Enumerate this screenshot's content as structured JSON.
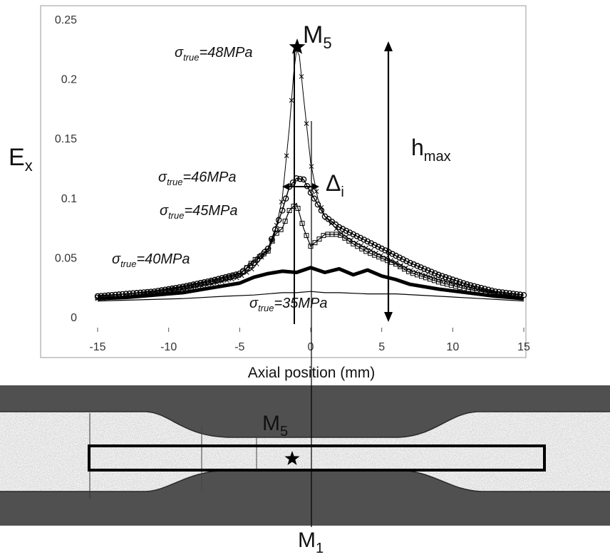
{
  "chart_data": {
    "type": "line",
    "xlabel": "Axial position (mm)",
    "ylabel_main": "E",
    "ylabel_sub": "x",
    "xlim": [
      -15,
      15
    ],
    "ylim": [
      0,
      0.25
    ],
    "x_ticks": [
      -15,
      -10,
      -5,
      0,
      5,
      10,
      15
    ],
    "x_tick_labels": [
      "-15",
      "-10",
      "-5",
      "0",
      "5",
      "10",
      "15"
    ],
    "y_ticks": [
      0,
      0.05,
      0.1,
      0.15,
      0.2,
      0.25
    ],
    "y_tick_labels": [
      "0",
      "0.05",
      "0.1",
      "0.15",
      "0.2",
      "0.25"
    ],
    "grid": false,
    "series": [
      {
        "name": "σtrue=35MPa",
        "style": "thin-line",
        "x": [
          -15,
          -12,
          -9,
          -6,
          -4,
          -2,
          -1,
          0,
          1,
          2,
          4,
          6,
          9,
          12,
          15
        ],
        "y": [
          0.014,
          0.015,
          0.016,
          0.018,
          0.019,
          0.021,
          0.021,
          0.022,
          0.021,
          0.021,
          0.02,
          0.02,
          0.018,
          0.016,
          0.014
        ]
      },
      {
        "name": "σtrue=40MPa",
        "style": "thick-line",
        "x": [
          -15,
          -13,
          -11,
          -9,
          -7,
          -5,
          -4,
          -3,
          -2,
          -1,
          0,
          1,
          2,
          3,
          4,
          5,
          6,
          7,
          9,
          11,
          13,
          15
        ],
        "y": [
          0.016,
          0.017,
          0.019,
          0.021,
          0.025,
          0.029,
          0.034,
          0.037,
          0.039,
          0.038,
          0.042,
          0.038,
          0.041,
          0.036,
          0.04,
          0.035,
          0.032,
          0.028,
          0.024,
          0.021,
          0.018,
          0.016
        ]
      },
      {
        "name": "σtrue=45MPa",
        "style": "square-markers",
        "x": [
          -15,
          -13,
          -11,
          -9,
          -7,
          -5,
          -4,
          -3,
          -2.5,
          -2,
          -1.5,
          -1,
          -0.5,
          0,
          0.5,
          1,
          2,
          3,
          4,
          5,
          6,
          7,
          9,
          11,
          13,
          15
        ],
        "y": [
          0.017,
          0.018,
          0.021,
          0.025,
          0.03,
          0.036,
          0.048,
          0.056,
          0.07,
          0.075,
          0.09,
          0.096,
          0.075,
          0.06,
          0.065,
          0.07,
          0.07,
          0.062,
          0.055,
          0.05,
          0.045,
          0.038,
          0.03,
          0.024,
          0.02,
          0.017
        ]
      },
      {
        "name": "σtrue=46MPa",
        "style": "circle-markers",
        "x": [
          -15,
          -13,
          -11,
          -9,
          -7,
          -5,
          -4,
          -3,
          -2,
          -1.5,
          -1,
          -0.5,
          0,
          1,
          2,
          3,
          4,
          5,
          6,
          7,
          9,
          11,
          13,
          15
        ],
        "y": [
          0.018,
          0.02,
          0.022,
          0.026,
          0.031,
          0.037,
          0.046,
          0.058,
          0.09,
          0.11,
          0.117,
          0.116,
          0.105,
          0.085,
          0.076,
          0.07,
          0.064,
          0.058,
          0.052,
          0.046,
          0.036,
          0.028,
          0.022,
          0.019
        ]
      },
      {
        "name": "σtrue=48MPa",
        "style": "cross-markers",
        "x": [
          -15,
          -13,
          -11,
          -9,
          -7,
          -5,
          -4,
          -3,
          -2.5,
          -2,
          -1.5,
          -1.2,
          -1,
          -0.8,
          -0.5,
          0,
          0.5,
          1,
          2,
          3,
          4,
          5,
          6,
          7,
          9,
          11,
          13,
          15
        ],
        "y": [
          0.016,
          0.018,
          0.02,
          0.024,
          0.028,
          0.034,
          0.042,
          0.058,
          0.072,
          0.1,
          0.16,
          0.205,
          0.225,
          0.22,
          0.185,
          0.13,
          0.1,
          0.085,
          0.072,
          0.064,
          0.058,
          0.052,
          0.046,
          0.04,
          0.032,
          0.026,
          0.021,
          0.017
        ]
      }
    ],
    "annotations": {
      "m5_top": {
        "main": "M",
        "sub": "5"
      },
      "m5_bottom": {
        "main": "M",
        "sub": "5"
      },
      "m1": {
        "main": "M",
        "sub": "1"
      },
      "hmax": {
        "main": "h",
        "sub": "max"
      },
      "delta": {
        "main": "Δ",
        "sub": "i"
      },
      "sigma_labels": [
        {
          "prefix": "σ",
          "sub": "true",
          "value": "=48MPa"
        },
        {
          "prefix": "σ",
          "sub": "true",
          "value": "=46MPa"
        },
        {
          "prefix": "σ",
          "sub": "true",
          "value": "=45MPa"
        },
        {
          "prefix": "σ",
          "sub": "true",
          "value": "=40MPa"
        },
        {
          "prefix": "σ",
          "sub": "true",
          "value": "=35MPa"
        }
      ]
    }
  }
}
